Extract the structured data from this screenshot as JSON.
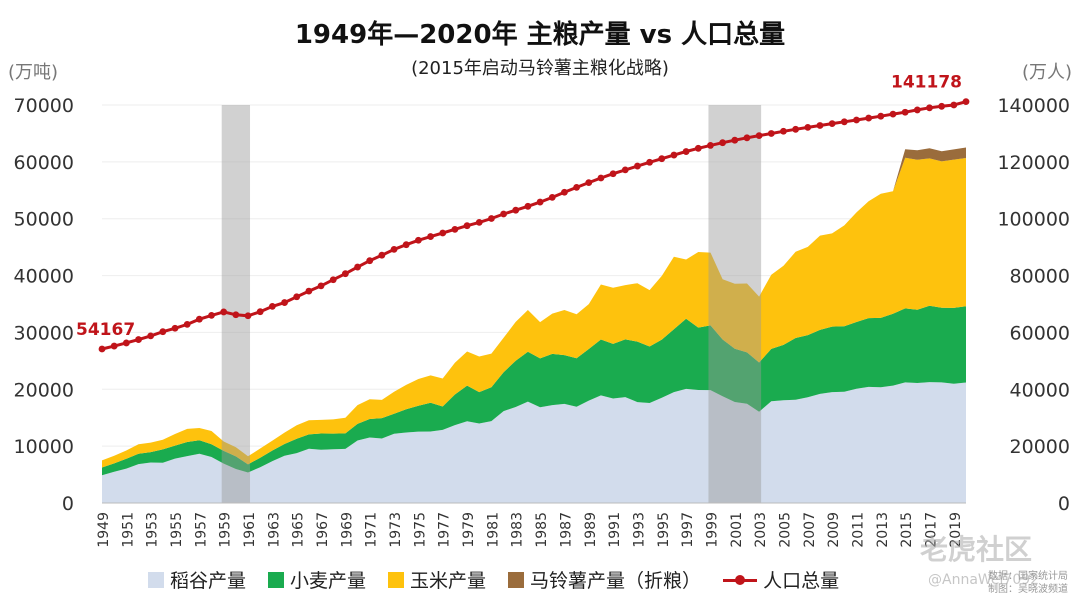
{
  "title": "1949年—2020年 主粮产量 vs 人口总量",
  "subtitle": "(2015年启动马铃薯主粮化战略)",
  "left_unit": "(万吨)",
  "right_unit": "(万人)",
  "credit": {
    "line1": "数据：国家统计局",
    "line2": "制图：吴晓波频道"
  },
  "watermark": "老虎社区",
  "watermark2": "@AnnaWei7092",
  "colors": {
    "rice": "#d2dcec",
    "wheat": "#1aab4f",
    "corn": "#fec20d",
    "potato": "#9a6c3c",
    "population": "#c0141a",
    "shade": "#9a9a9a"
  },
  "chart_data": {
    "type": "area",
    "x": [
      1949,
      1950,
      1951,
      1952,
      1953,
      1954,
      1955,
      1956,
      1957,
      1958,
      1959,
      1960,
      1961,
      1962,
      1963,
      1964,
      1965,
      1966,
      1967,
      1968,
      1969,
      1970,
      1971,
      1972,
      1973,
      1974,
      1975,
      1976,
      1977,
      1978,
      1979,
      1980,
      1981,
      1982,
      1983,
      1984,
      1985,
      1986,
      1987,
      1988,
      1989,
      1990,
      1991,
      1992,
      1993,
      1994,
      1995,
      1996,
      1997,
      1998,
      1999,
      2000,
      2001,
      2002,
      2003,
      2004,
      2005,
      2006,
      2007,
      2008,
      2009,
      2010,
      2011,
      2012,
      2013,
      2014,
      2015,
      2016,
      2017,
      2018,
      2019,
      2020
    ],
    "x_tick_labels": [
      "1949",
      "1951",
      "1953",
      "1955",
      "1957",
      "1959",
      "1961",
      "1963",
      "1965",
      "1967",
      "1969",
      "1971",
      "1973",
      "1975",
      "1977",
      "1979",
      "1981",
      "1983",
      "1985",
      "1987",
      "1989",
      "1991",
      "1993",
      "1995",
      "1997",
      "1999",
      "2001",
      "2003",
      "2005",
      "2007",
      "2009",
      "2011",
      "2013",
      "2015",
      "2017",
      "2019"
    ],
    "y_left_ticks": [
      "0",
      "10000",
      "20000",
      "30000",
      "40000",
      "50000",
      "60000",
      "70000"
    ],
    "y_right_ticks": [
      "0",
      "20000",
      "40000",
      "60000",
      "80000",
      "100000",
      "120000",
      "140000"
    ],
    "y_left_range": [
      0,
      70000
    ],
    "y_right_range": [
      0,
      140000
    ],
    "shaded_periods": [
      [
        1959,
        1961
      ],
      [
        1999,
        2003
      ]
    ],
    "series": [
      {
        "name": "稻谷产量",
        "axis": "left",
        "stack": true,
        "color_key": "rice",
        "values": [
          4865,
          5510,
          6056,
          6843,
          7127,
          7085,
          7803,
          8248,
          8678,
          8085,
          6937,
          5973,
          5364,
          6299,
          7377,
          8300,
          8772,
          9539,
          9369,
          9453,
          9507,
          10999,
          11521,
          11336,
          12174,
          12391,
          12556,
          12581,
          12857,
          13693,
          14375,
          13991,
          14396,
          16160,
          16887,
          17826,
          16857,
          17222,
          17426,
          16911,
          18013,
          18933,
          18381,
          18622,
          17751,
          17593,
          18523,
          19510,
          20073,
          19871,
          19849,
          18791,
          17758,
          17454,
          16066,
          17909,
          18059,
          18172,
          18603,
          19190,
          19510,
          19576,
          20100,
          20424,
          20361,
          20651,
          21214,
          21109,
          21268,
          21213,
          20961,
          21186
        ]
      },
      {
        "name": "小麦产量",
        "axis": "left",
        "stack": true,
        "color_key": "wheat",
        "values": [
          1381,
          1450,
          1722,
          1813,
          1828,
          2334,
          2297,
          2480,
          2364,
          2259,
          2218,
          2217,
          1425,
          1667,
          1848,
          2084,
          2522,
          2528,
          2849,
          2746,
          2729,
          2919,
          3258,
          3599,
          3523,
          4087,
          4531,
          5039,
          4108,
          5384,
          6273,
          5521,
          5964,
          6847,
          8139,
          8782,
          8581,
          9004,
          8590,
          8543,
          9081,
          9823,
          9595,
          10159,
          10639,
          9930,
          10221,
          11057,
          12329,
          10973,
          11388,
          9964,
          9387,
          9029,
          8649,
          9195,
          9745,
          10847,
          10930,
          11246,
          11512,
          11518,
          11740,
          12102,
          12193,
          12621,
          13019,
          12885,
          13433,
          13144,
          13360,
          13425
        ]
      },
      {
        "name": "玉米产量",
        "axis": "left",
        "stack": true,
        "color_key": "corn",
        "values": [
          1242,
          1350,
          1450,
          1685,
          1669,
          1714,
          2032,
          2305,
          2144,
          2314,
          1667,
          1603,
          1416,
          1627,
          1758,
          2000,
          2366,
          2500,
          2400,
          2500,
          2765,
          3303,
          3467,
          3200,
          3862,
          4291,
          4722,
          4816,
          4939,
          5594,
          6004,
          6260,
          5921,
          6056,
          6821,
          7341,
          6383,
          7086,
          7925,
          7735,
          7893,
          9682,
          9877,
          9538,
          10270,
          9928,
          11199,
          12747,
          10431,
          13295,
          12809,
          10600,
          11409,
          12131,
          11583,
          13029,
          13937,
          15160,
          15512,
          16591,
          16397,
          17725,
          19278,
          20561,
          21849,
          21565,
          26499,
          26361,
          25907,
          25717,
          26077,
          26067
        ]
      },
      {
        "name": "马铃薯产量（折粮）",
        "axis": "left",
        "stack": true,
        "color_key": "potato",
        "values": [
          0,
          0,
          0,
          0,
          0,
          0,
          0,
          0,
          0,
          0,
          0,
          0,
          0,
          0,
          0,
          0,
          0,
          0,
          0,
          0,
          0,
          0,
          0,
          0,
          0,
          0,
          0,
          0,
          0,
          0,
          0,
          0,
          0,
          0,
          0,
          0,
          0,
          0,
          0,
          0,
          0,
          0,
          0,
          0,
          0,
          0,
          0,
          0,
          0,
          0,
          0,
          0,
          0,
          0,
          0,
          0,
          0,
          0,
          0,
          0,
          0,
          0,
          0,
          0,
          0,
          0,
          1500,
          1700,
          1800,
          1780,
          1800,
          1850
        ]
      },
      {
        "name": "人口总量",
        "axis": "right",
        "type": "line",
        "color_key": "population",
        "values": [
          54167,
          55196,
          56300,
          57482,
          58796,
          60266,
          61465,
          62828,
          64653,
          65994,
          67207,
          66207,
          65859,
          67296,
          69172,
          70499,
          72538,
          74542,
          76368,
          78534,
          80671,
          82992,
          85229,
          87177,
          89211,
          90859,
          92420,
          93717,
          94974,
          96259,
          97542,
          98705,
          100072,
          101654,
          103008,
          104357,
          105851,
          107507,
          109300,
          111026,
          112704,
          114333,
          115823,
          117171,
          118517,
          119850,
          121121,
          122389,
          123626,
          124761,
          125786,
          126743,
          127627,
          128453,
          129227,
          129988,
          130756,
          131448,
          132129,
          132802,
          133450,
          134091,
          134735,
          135404,
          136072,
          136782,
          137462,
          138271,
          139008,
          139538,
          140005,
          141178
        ]
      }
    ],
    "annotations": [
      {
        "text": "54167",
        "x": 1949,
        "axis": "right"
      },
      {
        "text": "141178",
        "x": 2020,
        "axis": "right"
      }
    ],
    "grid": true,
    "legend_position": "bottom"
  }
}
